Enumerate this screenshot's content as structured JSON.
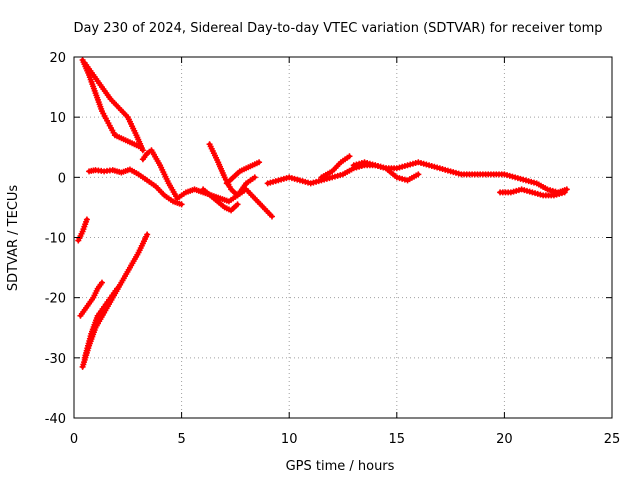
{
  "chart_data": {
    "type": "scatter",
    "title": "Day 230 of 2024, Sidereal Day-to-day VTEC variation (SDTVAR) for receiver tomp",
    "xlabel": "GPS time / hours",
    "ylabel": "SDTVAR / TECUs",
    "xlim": [
      0,
      25
    ],
    "ylim": [
      -40,
      20
    ],
    "xticks": [
      0,
      5,
      10,
      15,
      20,
      25
    ],
    "yticks": [
      -40,
      -30,
      -20,
      -10,
      0,
      10,
      20
    ],
    "xtick_labels": [
      "0",
      "5",
      "10",
      "15",
      "20",
      "25"
    ],
    "ytick_labels": [
      "-40",
      "-30",
      "-20",
      "-10",
      "0",
      "10",
      "20"
    ],
    "grid": true,
    "grid_style": "dotted",
    "marker": "+",
    "series_color": "#ff0000",
    "series": [
      {
        "name": "track-upper-decay-a",
        "x": [
          0.4,
          0.7,
          1.0,
          1.3,
          1.6,
          1.9,
          2.2,
          2.5,
          2.8,
          3.1
        ],
        "y": [
          19.5,
          17,
          14,
          11,
          9,
          7,
          6.5,
          6,
          5.5,
          5
        ]
      },
      {
        "name": "track-upper-decay-b",
        "x": [
          0.5,
          0.9,
          1.3,
          1.7,
          2.1,
          2.5,
          2.9,
          3.2
        ],
        "y": [
          19,
          17,
          15,
          13,
          11.5,
          10,
          7,
          4.5
        ]
      },
      {
        "name": "track-near-zero-early",
        "x": [
          0.7,
          1.0,
          1.4,
          1.8,
          2.2,
          2.6,
          3.0,
          3.4,
          3.8,
          4.2,
          4.6,
          5.0
        ],
        "y": [
          1,
          1.2,
          1.0,
          1.2,
          0.8,
          1.3,
          0.5,
          -0.5,
          -1.5,
          -3,
          -4,
          -4.5
        ]
      },
      {
        "name": "track-mid-rise-fall",
        "x": [
          3.2,
          3.4,
          3.6,
          4.0,
          4.4,
          4.8,
          5.2,
          5.6,
          6.0,
          6.4,
          6.8,
          7.2,
          7.6,
          8.0,
          8.4
        ],
        "y": [
          3,
          4,
          4.5,
          2,
          -1,
          -3.5,
          -2.5,
          -2,
          -2.5,
          -3,
          -3.5,
          -4,
          -3,
          -1,
          0
        ]
      },
      {
        "name": "track-6h-peak",
        "x": [
          6.3,
          6.5,
          6.7,
          7.0,
          7.3,
          7.6,
          8.0,
          8.4,
          8.8,
          9.2
        ],
        "y": [
          5.5,
          4,
          2.5,
          0,
          -2,
          -3,
          -2,
          -3.5,
          -5,
          -6.5
        ]
      },
      {
        "name": "track-7h-branch",
        "x": [
          7.1,
          7.4,
          7.7,
          8.0,
          8.3,
          8.6
        ],
        "y": [
          -1,
          0,
          1,
          1.5,
          2,
          2.5
        ]
      },
      {
        "name": "track-7h-low",
        "x": [
          6.0,
          6.5,
          7.0,
          7.3,
          7.6
        ],
        "y": [
          -2,
          -3.5,
          -5,
          -5.5,
          -4.5
        ]
      },
      {
        "name": "track-main-band",
        "x": [
          9,
          9.5,
          10,
          10.5,
          11,
          11.5,
          12,
          12.5,
          13,
          13.5,
          14,
          14.5,
          15,
          15.5,
          16,
          16.5,
          17,
          17.5,
          18,
          18.5,
          19,
          19.5,
          20,
          20.5,
          21,
          21.5,
          22,
          22.5,
          22.9
        ],
        "y": [
          -1,
          -0.5,
          0,
          -0.5,
          -1,
          -0.5,
          0,
          0.5,
          1.5,
          2,
          2,
          1.5,
          1.5,
          2,
          2.5,
          2,
          1.5,
          1,
          0.5,
          0.5,
          0.5,
          0.5,
          0.5,
          0,
          -0.5,
          -1,
          -2,
          -2.5,
          -2
        ]
      },
      {
        "name": "track-12h-bump",
        "x": [
          11.5,
          12.0,
          12.4,
          12.8
        ],
        "y": [
          0,
          1,
          2.5,
          3.5
        ]
      },
      {
        "name": "track-15h-dip",
        "x": [
          13.0,
          13.5,
          14.0,
          14.5,
          15.0,
          15.5,
          16.0
        ],
        "y": [
          2,
          2.5,
          2,
          1.5,
          0,
          -0.5,
          0.5
        ]
      },
      {
        "name": "track-late-lower",
        "x": [
          19.8,
          20.3,
          20.8,
          21.3,
          21.8,
          22.3,
          22.8
        ],
        "y": [
          -2.5,
          -2.5,
          -2,
          -2.5,
          -3,
          -3,
          -2.5
        ]
      },
      {
        "name": "track-isolated-neg10",
        "x": [
          0.2,
          0.4,
          0.6
        ],
        "y": [
          -10.5,
          -9,
          -7
        ]
      },
      {
        "name": "track-lower-rise-a",
        "x": [
          0.3,
          0.5,
          0.7,
          0.9,
          1.1,
          1.3
        ],
        "y": [
          -23,
          -22,
          -21,
          -20,
          -18.5,
          -17.5
        ]
      },
      {
        "name": "track-lower-rise-b",
        "x": [
          0.4,
          0.7,
          1.0,
          1.4,
          1.8,
          2.2,
          2.6,
          3.0,
          3.4
        ],
        "y": [
          -31.5,
          -28,
          -25,
          -22.5,
          -20,
          -17.5,
          -15,
          -12.5,
          -9.5
        ]
      },
      {
        "name": "track-lower-rise-c",
        "x": [
          0.5,
          0.8,
          1.1,
          1.4,
          1.7,
          2.0
        ],
        "y": [
          -30,
          -26,
          -23,
          -21.5,
          -20,
          -18.5
        ]
      }
    ]
  }
}
